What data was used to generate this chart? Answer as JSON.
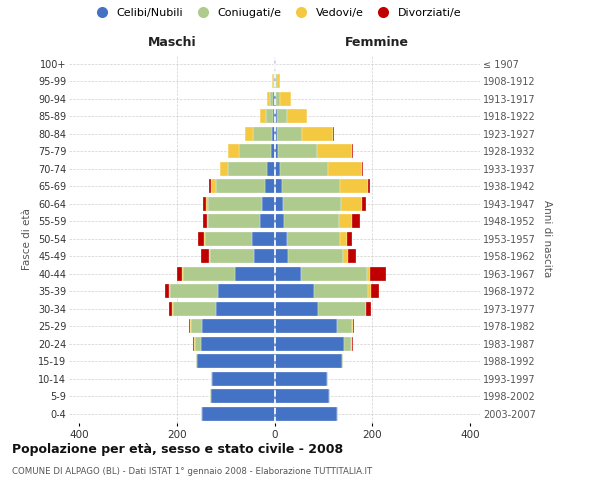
{
  "age_groups": [
    "0-4",
    "5-9",
    "10-14",
    "15-19",
    "20-24",
    "25-29",
    "30-34",
    "35-39",
    "40-44",
    "45-49",
    "50-54",
    "55-59",
    "60-64",
    "65-69",
    "70-74",
    "75-79",
    "80-84",
    "85-89",
    "90-94",
    "95-99",
    "100+"
  ],
  "birth_years": [
    "2003-2007",
    "1998-2002",
    "1993-1997",
    "1988-1992",
    "1983-1987",
    "1978-1982",
    "1973-1977",
    "1968-1972",
    "1963-1967",
    "1958-1962",
    "1953-1957",
    "1948-1952",
    "1943-1947",
    "1938-1942",
    "1933-1937",
    "1928-1932",
    "1923-1927",
    "1918-1922",
    "1913-1917",
    "1908-1912",
    "≤ 1907"
  ],
  "maschi": {
    "celibi": [
      148,
      130,
      128,
      158,
      150,
      148,
      120,
      115,
      80,
      42,
      45,
      30,
      25,
      20,
      15,
      8,
      5,
      4,
      3,
      2,
      1
    ],
    "coniugati": [
      2,
      2,
      2,
      2,
      12,
      22,
      88,
      98,
      108,
      90,
      98,
      105,
      110,
      100,
      80,
      65,
      38,
      14,
      6,
      2,
      1
    ],
    "vedovi": [
      0,
      0,
      0,
      0,
      2,
      2,
      2,
      2,
      2,
      2,
      2,
      3,
      5,
      10,
      16,
      22,
      18,
      12,
      6,
      1,
      0
    ],
    "divorziati": [
      0,
      0,
      0,
      0,
      2,
      2,
      6,
      8,
      10,
      16,
      12,
      9,
      6,
      3,
      0,
      0,
      0,
      0,
      0,
      0,
      0
    ]
  },
  "femmine": {
    "nubili": [
      128,
      112,
      108,
      138,
      142,
      128,
      88,
      80,
      55,
      28,
      25,
      20,
      18,
      15,
      12,
      8,
      5,
      5,
      3,
      2,
      1
    ],
    "coniugate": [
      2,
      2,
      2,
      2,
      15,
      30,
      98,
      112,
      135,
      112,
      108,
      112,
      118,
      118,
      98,
      78,
      52,
      20,
      8,
      3,
      1
    ],
    "vedove": [
      0,
      0,
      0,
      0,
      2,
      2,
      2,
      5,
      5,
      10,
      16,
      26,
      42,
      58,
      68,
      72,
      62,
      42,
      22,
      6,
      2
    ],
    "divorziate": [
      0,
      0,
      0,
      0,
      2,
      2,
      10,
      16,
      32,
      16,
      10,
      16,
      8,
      5,
      3,
      2,
      2,
      0,
      0,
      0,
      0
    ]
  },
  "colors": {
    "celibi_nubili": "#4472C4",
    "coniugati": "#AECA8C",
    "vedovi": "#F5C842",
    "divorziati": "#C00000"
  },
  "title": "Popolazione per età, sesso e stato civile - 2008",
  "subtitle": "COMUNE DI ALPAGO (BL) - Dati ISTAT 1° gennaio 2008 - Elaborazione TUTTITALIA.IT",
  "xlabel_left": "Maschi",
  "xlabel_right": "Femmine",
  "ylabel_left": "Fasce di età",
  "ylabel_right": "Anni di nascita",
  "xlim": 420,
  "background_color": "#ffffff",
  "grid_color": "#cccccc"
}
